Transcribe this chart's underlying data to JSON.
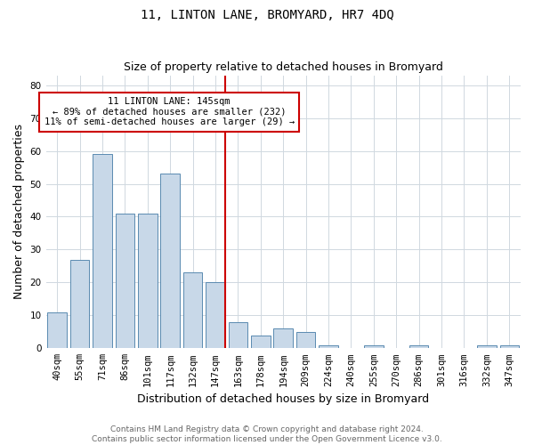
{
  "title": "11, LINTON LANE, BROMYARD, HR7 4DQ",
  "subtitle": "Size of property relative to detached houses in Bromyard",
  "xlabel": "Distribution of detached houses by size in Bromyard",
  "ylabel": "Number of detached properties",
  "footer_line1": "Contains HM Land Registry data © Crown copyright and database right 2024.",
  "footer_line2": "Contains public sector information licensed under the Open Government Licence v3.0.",
  "categories": [
    "40sqm",
    "55sqm",
    "71sqm",
    "86sqm",
    "101sqm",
    "117sqm",
    "132sqm",
    "147sqm",
    "163sqm",
    "178sqm",
    "194sqm",
    "209sqm",
    "224sqm",
    "240sqm",
    "255sqm",
    "270sqm",
    "286sqm",
    "301sqm",
    "316sqm",
    "332sqm",
    "347sqm"
  ],
  "values": [
    11,
    27,
    59,
    41,
    41,
    53,
    23,
    20,
    8,
    4,
    6,
    5,
    1,
    0,
    1,
    0,
    1,
    0,
    0,
    1,
    1
  ],
  "bar_color": "#c8d8e8",
  "bar_edge_color": "#5a8ab0",
  "vline_index": 7,
  "vline_color": "#cc0000",
  "annotation_text": "11 LINTON LANE: 145sqm\n← 89% of detached houses are smaller (232)\n11% of semi-detached houses are larger (29) →",
  "annotation_box_color": "#ffffff",
  "annotation_box_edge": "#cc0000",
  "ylim": [
    0,
    83
  ],
  "yticks": [
    0,
    10,
    20,
    30,
    40,
    50,
    60,
    70,
    80
  ],
  "grid_color": "#d0d8e0",
  "title_fontsize": 10,
  "subtitle_fontsize": 9,
  "axis_label_fontsize": 9,
  "tick_fontsize": 7.5,
  "annotation_fontsize": 7.5,
  "footer_fontsize": 6.5
}
